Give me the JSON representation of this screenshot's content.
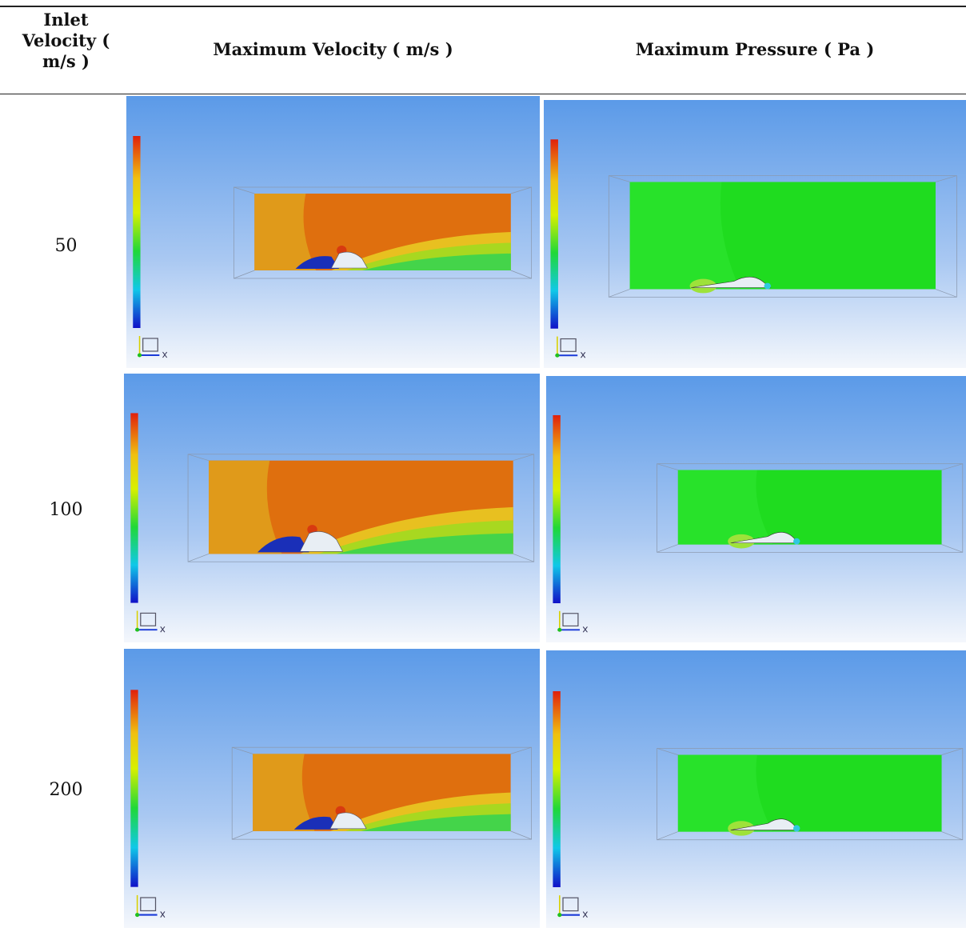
{
  "table": {
    "header": [
      "Inlet Velocity ( m/s )",
      "Maximum Velocity ( m/s )",
      "Maximum Pressure ( Pa )"
    ],
    "rows": [
      [
        "50"
      ],
      [
        "100"
      ],
      [
        "200"
      ]
    ]
  }
}
